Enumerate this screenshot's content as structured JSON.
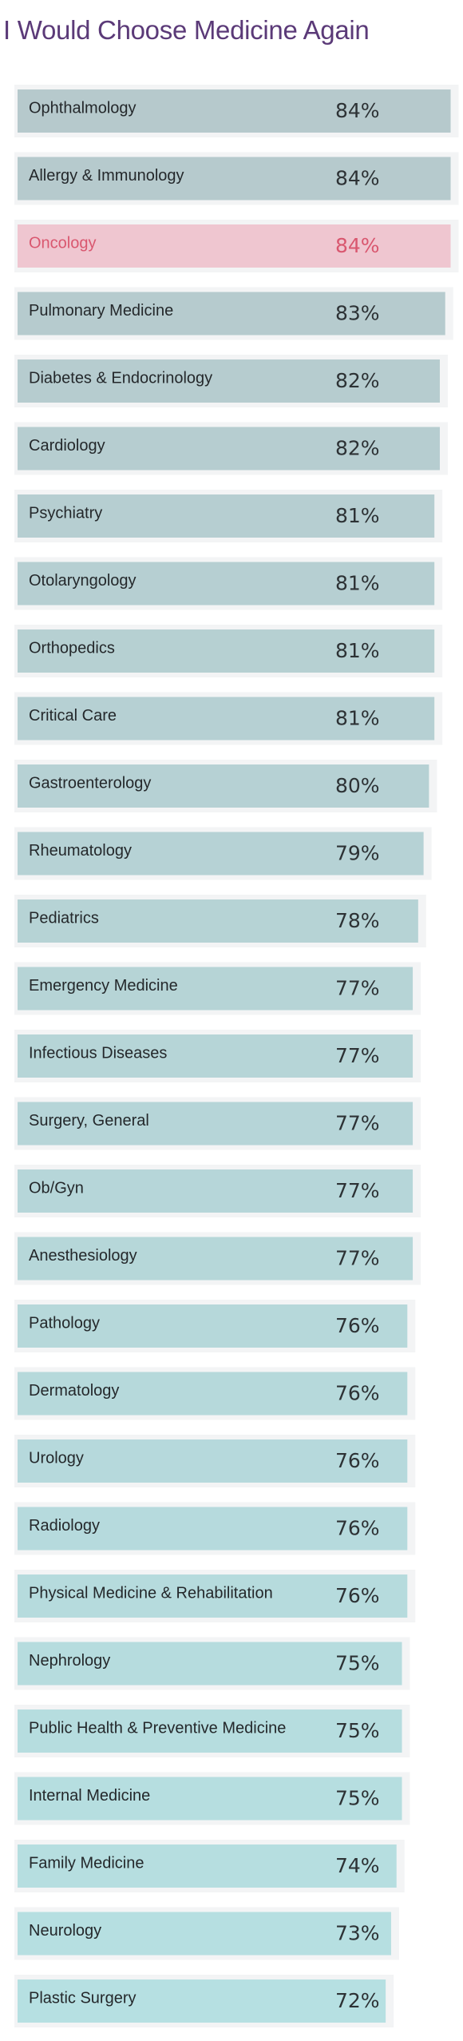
{
  "chart_data": {
    "type": "bar",
    "orientation": "horizontal",
    "title": "I Would Choose Medicine Again",
    "value_suffix": "%",
    "categories": [
      "Ophthalmology",
      "Allergy & Immunology",
      "Oncology",
      "Pulmonary Medicine",
      "Diabetes & Endocrinology",
      "Cardiology",
      "Psychiatry",
      "Otolaryngology",
      "Orthopedics",
      "Critical Care",
      "Gastroenterology",
      "Rheumatology",
      "Pediatrics",
      "Emergency Medicine",
      "Infectious Diseases",
      "Surgery, General",
      "Ob/Gyn",
      "Anesthesiology",
      "Pathology",
      "Dermatology",
      "Urology",
      "Radiology",
      "Physical Medicine & Rehabilitation",
      "Nephrology",
      "Public Health & Preventive Medicine",
      "Internal Medicine",
      "Family Medicine",
      "Neurology",
      "Plastic Surgery"
    ],
    "values": [
      84,
      84,
      84,
      83,
      82,
      82,
      81,
      81,
      81,
      81,
      80,
      79,
      78,
      77,
      77,
      77,
      77,
      77,
      76,
      76,
      76,
      76,
      76,
      75,
      75,
      75,
      74,
      73,
      72
    ],
    "highlight": "Oncology",
    "colors": {
      "title": "#5b3a78",
      "bar_start": "#b6c9cc",
      "bar_end": "#b6e0e2",
      "highlight_bar": "#efc6d0",
      "label_text": "#24282b",
      "value_text": "#2d3235",
      "highlight_text": "#d9576f",
      "shadow": "#f3f4f5"
    }
  }
}
